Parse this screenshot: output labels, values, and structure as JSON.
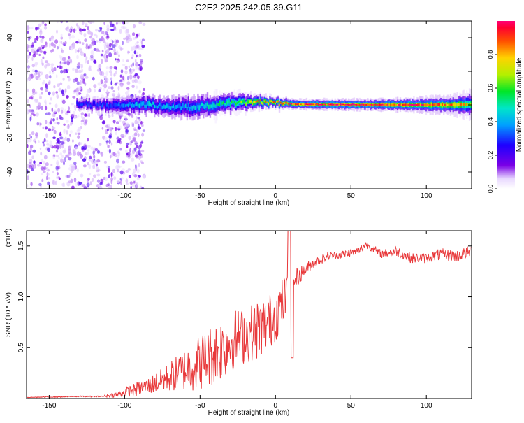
{
  "title": "C2E2.2025.242.05.39.G11",
  "chart_data": [
    {
      "type": "heatmap",
      "xlabel": "Height of straight line (km)",
      "ylabel": "Frequency (Hz)",
      "xlim": [
        -165,
        130
      ],
      "ylim": [
        -50,
        50
      ],
      "xticks": [
        -150,
        -100,
        -50,
        0,
        50,
        100
      ],
      "yticks": [
        -40,
        -20,
        0,
        20,
        40
      ],
      "ridge": [
        {
          "x": -132,
          "y": 0.5,
          "amp": 0.28,
          "hw": 2.2
        },
        {
          "x": -110,
          "y": -0.5,
          "amp": 0.32,
          "hw": 3.0
        },
        {
          "x": -90,
          "y": 0.5,
          "amp": 0.42,
          "hw": 3.3
        },
        {
          "x": -70,
          "y": -1.0,
          "amp": 0.38,
          "hw": 3.8
        },
        {
          "x": -55,
          "y": -1.5,
          "amp": 0.4,
          "hw": 4.2
        },
        {
          "x": -40,
          "y": 0.0,
          "amp": 0.48,
          "hw": 3.6
        },
        {
          "x": -25,
          "y": 1.5,
          "amp": 0.6,
          "hw": 2.8
        },
        {
          "x": -12,
          "y": 1.8,
          "amp": 0.8,
          "hw": 2.0
        },
        {
          "x": 0,
          "y": 1.0,
          "amp": 0.82,
          "hw": 1.6
        },
        {
          "x": 10,
          "y": 0.5,
          "amp": 0.9,
          "hw": 1.3
        },
        {
          "x": 30,
          "y": 0.2,
          "amp": 0.95,
          "hw": 1.4
        },
        {
          "x": 60,
          "y": 0.1,
          "amp": 0.95,
          "hw": 1.5
        },
        {
          "x": 90,
          "y": 0.0,
          "amp": 0.9,
          "hw": 1.8
        },
        {
          "x": 115,
          "y": 0.0,
          "amp": 0.85,
          "hw": 2.4
        },
        {
          "x": 130,
          "y": 0.2,
          "amp": 0.7,
          "hw": 3.5
        }
      ],
      "noise_region_xmax": -95,
      "colorbar": {
        "label": "Normalized spectral amplitude",
        "range": [
          0,
          1
        ],
        "ticks": [
          "0.0",
          "0.2",
          "0.4",
          "0.6",
          "0.8"
        ]
      }
    },
    {
      "type": "line",
      "xlabel": "Height of straight line (km)",
      "ylabel": "SNR (10 * v/v)",
      "yscale_label": "(x10",
      "yscale_exp": "4",
      "xlim": [
        -165,
        130
      ],
      "ylim": [
        0,
        1.65
      ],
      "xticks": [
        -150,
        -100,
        -50,
        0,
        50,
        100
      ],
      "yticks": [
        "0.5",
        "1.0",
        "1.5"
      ],
      "ytick_values": [
        0.5,
        1.0,
        1.5
      ],
      "series": [
        {
          "name": "SNR",
          "color": "#e8383a",
          "x": [
            -165,
            -150,
            -130,
            -115,
            -105,
            -95,
            -85,
            -75,
            -65,
            -55,
            -45,
            -35,
            -28,
            -20,
            -12,
            -5,
            0,
            5,
            9,
            12,
            18,
            25,
            35,
            45,
            55,
            60,
            70,
            80,
            90,
            100,
            110,
            120,
            130
          ],
          "y": [
            0.01,
            0.015,
            0.02,
            0.02,
            0.04,
            0.08,
            0.12,
            0.18,
            0.25,
            0.32,
            0.4,
            0.5,
            0.58,
            0.62,
            0.68,
            0.74,
            0.82,
            0.95,
            1.05,
            1.15,
            1.25,
            1.33,
            1.4,
            1.42,
            1.45,
            1.52,
            1.42,
            1.45,
            1.38,
            1.38,
            1.42,
            1.4,
            1.45
          ],
          "noise_amp": [
            0.002,
            0.005,
            0.006,
            0.006,
            0.03,
            0.06,
            0.08,
            0.12,
            0.18,
            0.25,
            0.3,
            0.32,
            0.3,
            0.28,
            0.3,
            0.28,
            0.26,
            0.25,
            0.2,
            0.12,
            0.07,
            0.05,
            0.04,
            0.04,
            0.04,
            0.04,
            0.04,
            0.05,
            0.05,
            0.05,
            0.06,
            0.06,
            0.06
          ]
        }
      ]
    }
  ]
}
